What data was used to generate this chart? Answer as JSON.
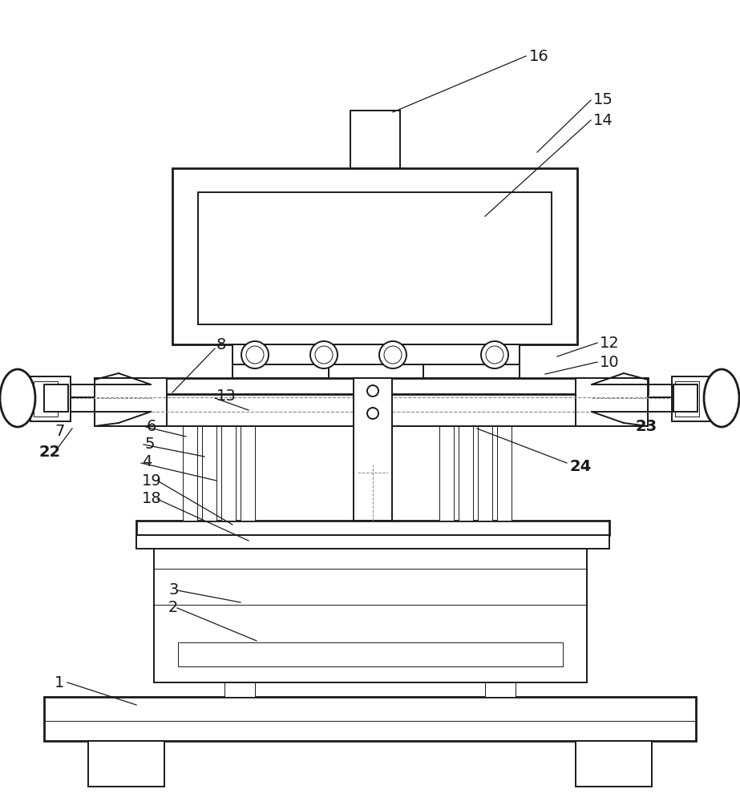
{
  "bg_color": "#ffffff",
  "lc": "#1a1a1a",
  "dc": "#888888",
  "lw": 1.4,
  "lwt": 0.7,
  "lwT": 2.0,
  "fig_w": 9.23,
  "fig_h": 10.0
}
